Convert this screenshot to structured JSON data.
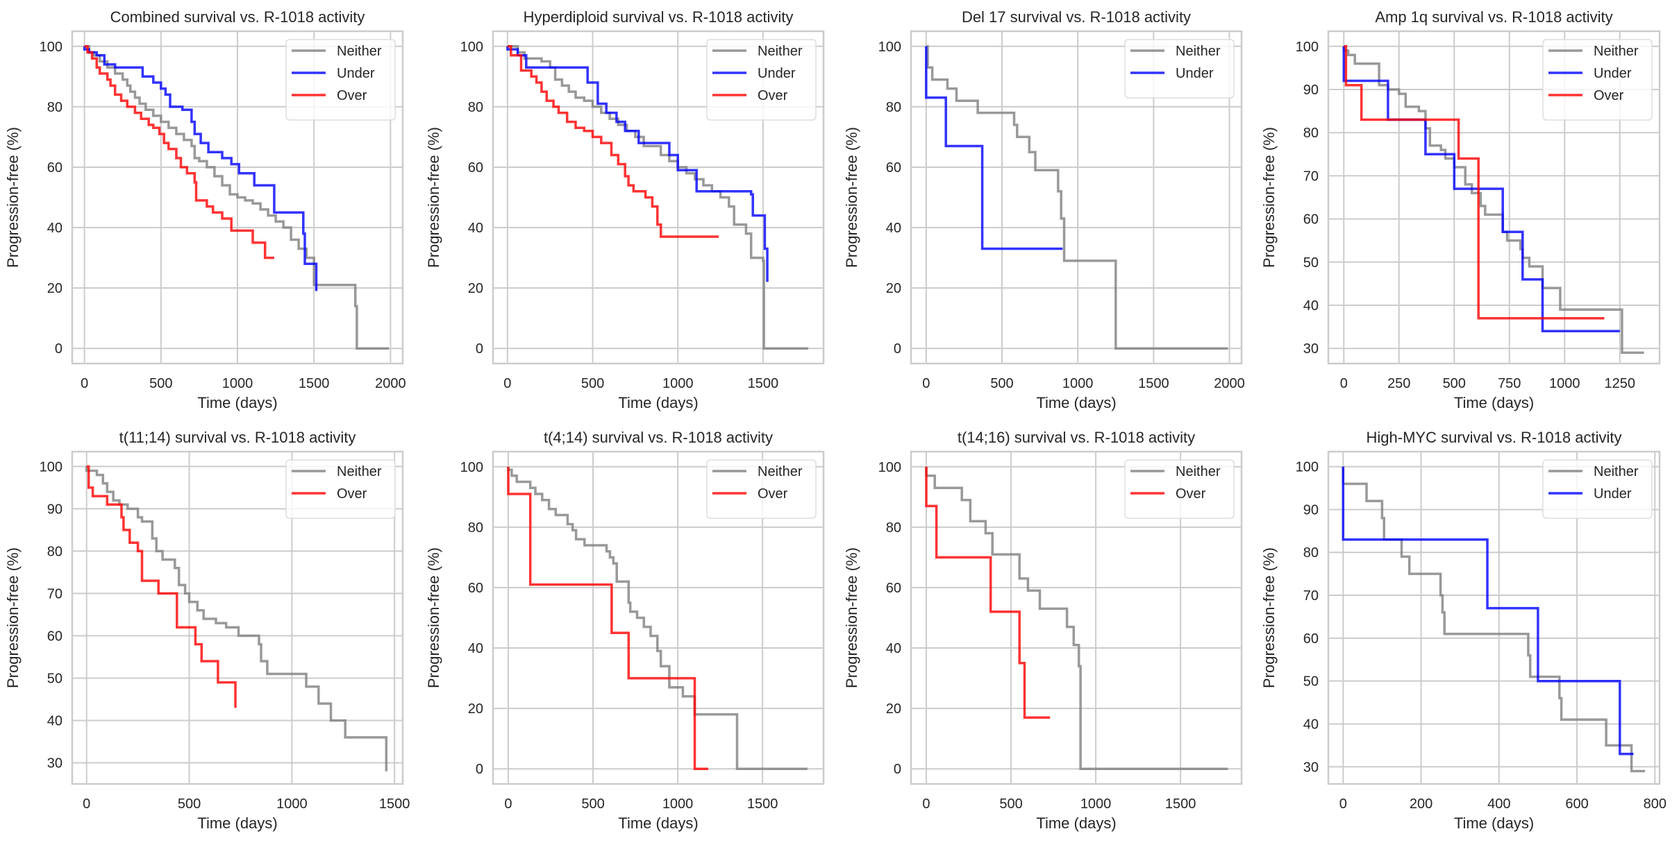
{
  "figure": {
    "colors": {
      "Neither": "#808080",
      "Under": "#0000ff",
      "Over": "#ff0000"
    }
  },
  "chart_data": [
    {
      "type": "line",
      "subtype": "kaplan-meier-step",
      "title": "Combined survival vs. R-1018 activity",
      "xlabel": "Time (days)",
      "ylabel": "Progression-free (%)",
      "xlim": [
        -80,
        2080
      ],
      "ylim": [
        -5,
        105
      ],
      "xticks": [
        0,
        500,
        1000,
        1500,
        2000
      ],
      "yticks": [
        0,
        20,
        40,
        60,
        80,
        100
      ],
      "grid": true,
      "legend": "top-right",
      "series": [
        {
          "name": "Neither",
          "x": [
            0,
            30,
            60,
            100,
            150,
            200,
            250,
            280,
            300,
            330,
            360,
            400,
            450,
            500,
            550,
            600,
            650,
            700,
            720,
            750,
            800,
            850,
            900,
            950,
            1000,
            1050,
            1100,
            1150,
            1200,
            1250,
            1300,
            1350,
            1400,
            1450,
            1500,
            1770,
            1780,
            1990
          ],
          "y": [
            100,
            98,
            97,
            95,
            93,
            91,
            89,
            87,
            85,
            83,
            81,
            79,
            77,
            75,
            73,
            71,
            69,
            67,
            63,
            62,
            60,
            57,
            54,
            51,
            50,
            49,
            48,
            46,
            44,
            42,
            40,
            36,
            33,
            30,
            21,
            14,
            0,
            0
          ]
        },
        {
          "name": "Under",
          "x": [
            0,
            30,
            80,
            130,
            200,
            380,
            450,
            500,
            530,
            560,
            640,
            700,
            720,
            760,
            810,
            900,
            960,
            1010,
            1110,
            1240,
            1430,
            1440,
            1510,
            1515
          ],
          "y": [
            99,
            98,
            97,
            94,
            93,
            90,
            88,
            86,
            84,
            80,
            79,
            75,
            71,
            68,
            65,
            63,
            61,
            58,
            54,
            45,
            38,
            28,
            28,
            19
          ]
        },
        {
          "name": "Over",
          "x": [
            0,
            20,
            50,
            80,
            100,
            150,
            170,
            200,
            240,
            280,
            330,
            370,
            420,
            450,
            490,
            520,
            550,
            600,
            630,
            670,
            720,
            730,
            800,
            840,
            900,
            960,
            1100,
            1180,
            1240
          ],
          "y": [
            100,
            98,
            96,
            93,
            91,
            89,
            87,
            84,
            82,
            80,
            78,
            76,
            74,
            73,
            71,
            68,
            66,
            63,
            60,
            58,
            55,
            49,
            47,
            45,
            43,
            39,
            35,
            30,
            30
          ]
        }
      ]
    },
    {
      "type": "line",
      "subtype": "kaplan-meier-step",
      "title": "Hyperdiploid survival vs. R-1018 activity",
      "xlabel": "Time (days)",
      "ylabel": "Progression-free (%)",
      "xlim": [
        -85,
        1855
      ],
      "ylim": [
        -5,
        105
      ],
      "xticks": [
        0,
        500,
        1000,
        1500
      ],
      "yticks": [
        0,
        20,
        40,
        60,
        80,
        100
      ],
      "grid": true,
      "legend": "top-right",
      "series": [
        {
          "name": "Neither",
          "x": [
            0,
            60,
            100,
            200,
            250,
            280,
            320,
            360,
            400,
            450,
            500,
            550,
            600,
            650,
            700,
            750,
            800,
            900,
            950,
            1000,
            1050,
            1100,
            1150,
            1200,
            1250,
            1300,
            1330,
            1400,
            1430,
            1500,
            1505,
            1765
          ],
          "y": [
            100,
            98,
            96,
            95,
            93,
            89,
            87,
            85,
            83,
            82,
            80,
            78,
            76,
            74,
            72,
            70,
            67,
            64,
            62,
            60,
            58,
            56,
            54,
            52,
            50,
            47,
            41,
            38,
            30,
            29,
            0,
            0
          ]
        },
        {
          "name": "Under",
          "x": [
            0,
            60,
            110,
            440,
            470,
            530,
            580,
            640,
            690,
            770,
            950,
            1000,
            1110,
            1430,
            1440,
            1510,
            1525
          ],
          "y": [
            99,
            97,
            93,
            93,
            88,
            81,
            78,
            75,
            72,
            68,
            64,
            59,
            52,
            51,
            44,
            33,
            22
          ]
        },
        {
          "name": "Over",
          "x": [
            0,
            20,
            80,
            140,
            170,
            200,
            230,
            270,
            300,
            350,
            400,
            450,
            500,
            550,
            610,
            650,
            690,
            710,
            740,
            810,
            850,
            880,
            900,
            1240
          ],
          "y": [
            100,
            97,
            92,
            90,
            88,
            85,
            82,
            80,
            78,
            75,
            73,
            72,
            70,
            68,
            64,
            61,
            57,
            54,
            52,
            50,
            47,
            41,
            37,
            37
          ]
        }
      ]
    },
    {
      "type": "line",
      "subtype": "kaplan-meier-step",
      "title": "Del 17 survival vs. R-1018 activity",
      "xlabel": "Time (days)",
      "ylabel": "Progression-free (%)",
      "xlim": [
        -100,
        2080
      ],
      "ylim": [
        -5,
        105
      ],
      "xticks": [
        0,
        500,
        1000,
        1500,
        2000
      ],
      "yticks": [
        0,
        20,
        40,
        60,
        80,
        100
      ],
      "grid": true,
      "legend": "top-right",
      "series": [
        {
          "name": "Neither",
          "x": [
            0,
            10,
            40,
            140,
            200,
            340,
            580,
            600,
            680,
            720,
            870,
            890,
            910,
            1250,
            1990
          ],
          "y": [
            100,
            93,
            89,
            86,
            82,
            78,
            74,
            70,
            65,
            59,
            52,
            43,
            29,
            0,
            0
          ]
        },
        {
          "name": "Under",
          "x": [
            0,
            130,
            370,
            900
          ],
          "y": [
            83,
            67,
            33,
            33
          ]
        }
      ]
    },
    {
      "type": "line",
      "subtype": "kaplan-meier-step",
      "title": "Amp 1q survival vs. R-1018 activity",
      "xlabel": "Time (days)",
      "ylabel": "Progression-free (%)",
      "xlim": [
        -70,
        1430
      ],
      "ylim": [
        26.5,
        103.5
      ],
      "xticks": [
        0,
        250,
        500,
        750,
        1000,
        1250
      ],
      "yticks": [
        30,
        40,
        50,
        60,
        70,
        80,
        90,
        100
      ],
      "grid": true,
      "legend": "top-right",
      "series": [
        {
          "name": "Neither",
          "x": [
            0,
            20,
            50,
            140,
            160,
            200,
            250,
            280,
            340,
            370,
            390,
            440,
            460,
            500,
            550,
            580,
            620,
            640,
            720,
            740,
            800,
            810,
            840,
            900,
            980,
            1260,
            1360
          ],
          "y": [
            99,
            98,
            96,
            96,
            91,
            90,
            89,
            86,
            85,
            81,
            77,
            76,
            74,
            72,
            68,
            66,
            63,
            61,
            57,
            55,
            53,
            51,
            49,
            44,
            39,
            29,
            29
          ]
        },
        {
          "name": "Under",
          "x": [
            0,
            200,
            370,
            500,
            720,
            810,
            900,
            1250
          ],
          "y": [
            92,
            83,
            75,
            67,
            57,
            46,
            34,
            34
          ]
        },
        {
          "name": "Over",
          "x": [
            0,
            10,
            80,
            520,
            610,
            1180
          ],
          "y": [
            100,
            91,
            83,
            74,
            37,
            37
          ]
        }
      ]
    },
    {
      "type": "line",
      "subtype": "kaplan-meier-step",
      "title": "t(11;14) survival vs. R-1018 activity",
      "xlabel": "Time (days)",
      "ylabel": "Progression-free (%)",
      "xlim": [
        -70,
        1540
      ],
      "ylim": [
        25,
        103.5
      ],
      "xticks": [
        0,
        500,
        1000,
        1500
      ],
      "yticks": [
        30,
        40,
        50,
        60,
        70,
        80,
        90,
        100
      ],
      "grid": true,
      "legend": "top-right",
      "series": [
        {
          "name": "Neither",
          "x": [
            0,
            50,
            80,
            100,
            130,
            160,
            200,
            250,
            270,
            320,
            340,
            370,
            430,
            450,
            480,
            500,
            540,
            570,
            630,
            680,
            740,
            840,
            850,
            880,
            1070,
            1130,
            1190,
            1260,
            1460
          ],
          "y": [
            99,
            98,
            96,
            94,
            92,
            91,
            90,
            88,
            87,
            83,
            80,
            78,
            76,
            72,
            70,
            68,
            66,
            64,
            63,
            62,
            60,
            58,
            54,
            51,
            48,
            44,
            40,
            36,
            28
          ]
        },
        {
          "name": "Over",
          "x": [
            0,
            10,
            30,
            100,
            170,
            180,
            210,
            250,
            270,
            350,
            440,
            530,
            560,
            640,
            720,
            725
          ],
          "y": [
            100,
            95,
            93,
            91,
            88,
            85,
            82,
            80,
            73,
            70,
            62,
            58,
            54,
            49,
            49,
            43
          ]
        }
      ]
    },
    {
      "type": "line",
      "subtype": "kaplan-meier-step",
      "title": "t(4;14) survival vs. R-1018 activity",
      "xlabel": "Time (days)",
      "ylabel": "Progression-free (%)",
      "xlim": [
        -90,
        1860
      ],
      "ylim": [
        -5,
        105
      ],
      "xticks": [
        0,
        500,
        1000,
        1500
      ],
      "yticks": [
        0,
        20,
        40,
        60,
        80,
        100
      ],
      "grid": true,
      "legend": "top-right",
      "series": [
        {
          "name": "Neither",
          "x": [
            0,
            20,
            50,
            130,
            160,
            200,
            240,
            280,
            350,
            380,
            400,
            450,
            580,
            600,
            620,
            640,
            710,
            720,
            760,
            800,
            840,
            880,
            900,
            950,
            1030,
            1100,
            1350,
            1765
          ],
          "y": [
            99,
            97,
            95,
            93,
            91,
            89,
            86,
            84,
            81,
            79,
            76,
            74,
            72,
            70,
            68,
            62,
            55,
            52,
            50,
            47,
            44,
            39,
            34,
            27,
            24,
            18,
            0,
            0
          ]
        },
        {
          "name": "Over",
          "x": [
            0,
            130,
            610,
            710,
            1100,
            1180
          ],
          "y": [
            91,
            61,
            45,
            30,
            0,
            0
          ]
        }
      ]
    },
    {
      "type": "line",
      "subtype": "kaplan-meier-step",
      "title": "t(14;16) survival vs. R-1018 activity",
      "xlabel": "Time (days)",
      "ylabel": "Progression-free (%)",
      "xlim": [
        -90,
        1860
      ],
      "ylim": [
        -5,
        105
      ],
      "xticks": [
        0,
        500,
        1000,
        1500
      ],
      "yticks": [
        0,
        20,
        40,
        60,
        80,
        100
      ],
      "grid": true,
      "legend": "top-right",
      "series": [
        {
          "name": "Neither",
          "x": [
            0,
            50,
            210,
            260,
            350,
            390,
            550,
            600,
            670,
            830,
            870,
            900,
            910,
            1780
          ],
          "y": [
            97,
            93,
            89,
            82,
            78,
            71,
            63,
            59,
            53,
            47,
            41,
            34,
            0,
            0
          ]
        },
        {
          "name": "Over",
          "x": [
            0,
            60,
            380,
            550,
            580,
            730
          ],
          "y": [
            87,
            70,
            52,
            35,
            17,
            17
          ]
        }
      ]
    },
    {
      "type": "line",
      "subtype": "kaplan-meier-step",
      "title": "High-MYC survival vs. R-1018 activity",
      "xlabel": "Time (days)",
      "ylabel": "Progression-free (%)",
      "xlim": [
        -38,
        812
      ],
      "ylim": [
        26,
        103.5
      ],
      "xticks": [
        0,
        200,
        400,
        600,
        800
      ],
      "yticks": [
        30,
        40,
        50,
        60,
        70,
        80,
        90,
        100
      ],
      "grid": true,
      "legend": "top-right",
      "series": [
        {
          "name": "Neither",
          "x": [
            0,
            60,
            100,
            105,
            150,
            170,
            250,
            255,
            260,
            265,
            475,
            480,
            555,
            560,
            675,
            740,
            775
          ],
          "y": [
            96,
            92,
            88,
            83,
            79,
            75,
            70,
            66,
            61,
            61,
            56,
            51,
            46,
            41,
            35,
            29,
            29
          ]
        },
        {
          "name": "Under",
          "x": [
            0,
            370,
            500,
            710,
            745
          ],
          "y": [
            83,
            67,
            50,
            33,
            33
          ]
        }
      ]
    }
  ]
}
